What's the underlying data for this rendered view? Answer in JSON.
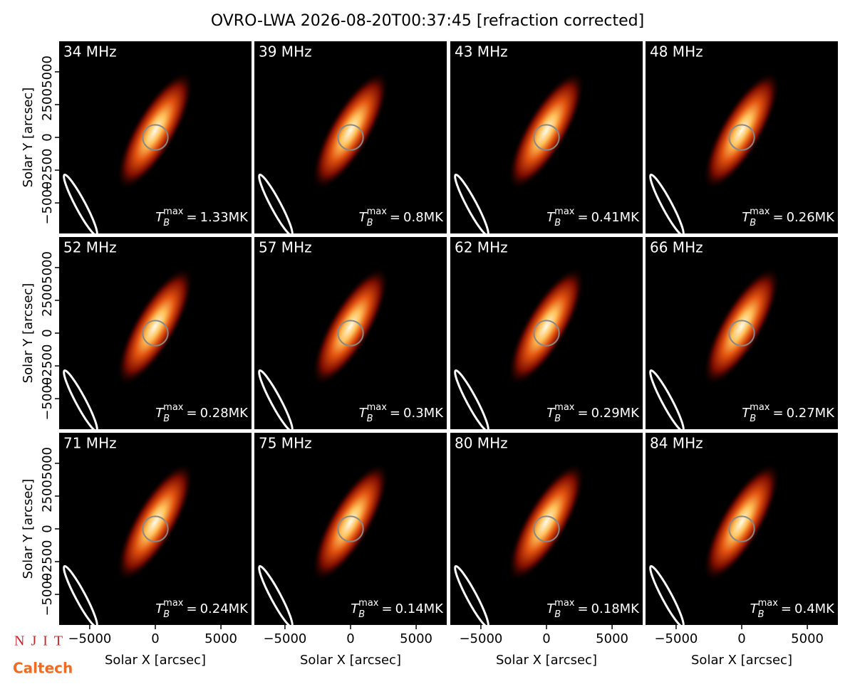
{
  "chart_data": {
    "type": "image_grid",
    "title": "OVRO-LWA 2026-08-20T00:37:45 [refraction corrected]",
    "xlabel": "Solar X [arcsec]",
    "ylabel": "Solar Y [arcsec]",
    "xlim": [
      -7330,
      7330
    ],
    "ylim": [
      -7330,
      7330
    ],
    "xticks": [
      {
        "value": -5000,
        "label": "−5000"
      },
      0,
      5000
    ],
    "yticks": [
      {
        "value": -5000,
        "label": "−5000"
      },
      {
        "value": -2500,
        "label": "−2500"
      },
      0,
      2500,
      5000
    ],
    "solar_disk_radius": 960,
    "tb_symbol": "T",
    "tb_sub": "B",
    "tb_sup": "max",
    "tb_equals": "=",
    "tb_unit": "MK",
    "panels": [
      {
        "freq": "34 MHz",
        "tb_max": "1.33"
      },
      {
        "freq": "39 MHz",
        "tb_max": "0.8"
      },
      {
        "freq": "43 MHz",
        "tb_max": "0.41"
      },
      {
        "freq": "48 MHz",
        "tb_max": "0.26"
      },
      {
        "freq": "52 MHz",
        "tb_max": "0.28"
      },
      {
        "freq": "57 MHz",
        "tb_max": "0.3"
      },
      {
        "freq": "62 MHz",
        "tb_max": "0.29"
      },
      {
        "freq": "66 MHz",
        "tb_max": "0.27"
      },
      {
        "freq": "71 MHz",
        "tb_max": "0.24"
      },
      {
        "freq": "75 MHz",
        "tb_max": "0.14"
      },
      {
        "freq": "80 MHz",
        "tb_max": "0.18"
      },
      {
        "freq": "84 MHz",
        "tb_max": "0.4"
      }
    ],
    "logos": [
      "NJIT",
      "Caltech"
    ]
  }
}
